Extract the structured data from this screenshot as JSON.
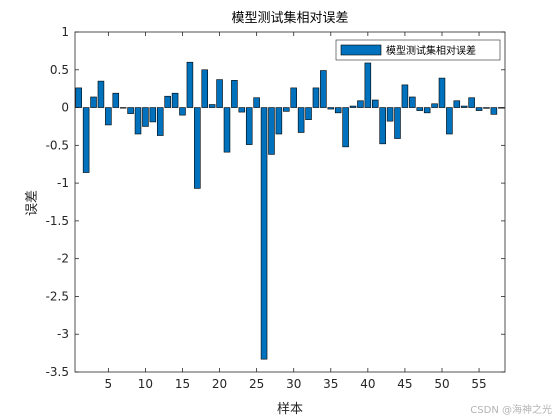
{
  "chart_data": {
    "type": "bar",
    "title": "模型测试集相对误差",
    "xlabel": "样本",
    "ylabel": "误差",
    "xlim": [
      0.5,
      58.5
    ],
    "ylim": [
      -3.5,
      1
    ],
    "xticks": [
      5,
      10,
      15,
      20,
      25,
      30,
      35,
      40,
      45,
      50,
      55
    ],
    "yticks": [
      -3.5,
      -3,
      -2.5,
      -2,
      -1.5,
      -1,
      -0.5,
      0,
      0.5,
      1
    ],
    "legend": {
      "position": "top-right"
    },
    "grid": false,
    "bar_color": "#0072BD",
    "x": [
      1,
      2,
      3,
      4,
      5,
      6,
      7,
      8,
      9,
      10,
      11,
      12,
      13,
      14,
      15,
      16,
      17,
      18,
      19,
      20,
      21,
      22,
      23,
      24,
      25,
      26,
      27,
      28,
      29,
      30,
      31,
      32,
      33,
      34,
      35,
      36,
      37,
      38,
      39,
      40,
      41,
      42,
      43,
      44,
      45,
      46,
      47,
      48,
      49,
      50,
      51,
      52,
      53,
      54,
      55,
      56,
      57,
      58
    ],
    "series": [
      {
        "name": "模型测试集相对误差",
        "values": [
          0.26,
          -0.86,
          0.14,
          0.35,
          -0.23,
          0.19,
          0.0,
          -0.08,
          -0.35,
          -0.25,
          -0.19,
          -0.37,
          0.15,
          0.19,
          -0.1,
          0.6,
          -1.07,
          0.5,
          0.04,
          0.37,
          -0.59,
          0.36,
          -0.06,
          -0.49,
          0.13,
          -3.33,
          -0.62,
          -0.35,
          -0.05,
          0.26,
          -0.33,
          -0.16,
          0.26,
          0.49,
          -0.02,
          -0.07,
          -0.52,
          0.02,
          0.09,
          0.59,
          0.1,
          -0.48,
          -0.18,
          -0.41,
          0.3,
          0.14,
          -0.04,
          -0.07,
          0.05,
          0.39,
          -0.35,
          0.09,
          0.02,
          0.13,
          -0.04,
          -0.01,
          -0.09,
          0.0
        ]
      }
    ]
  },
  "watermark": "CSDN @海神之光"
}
